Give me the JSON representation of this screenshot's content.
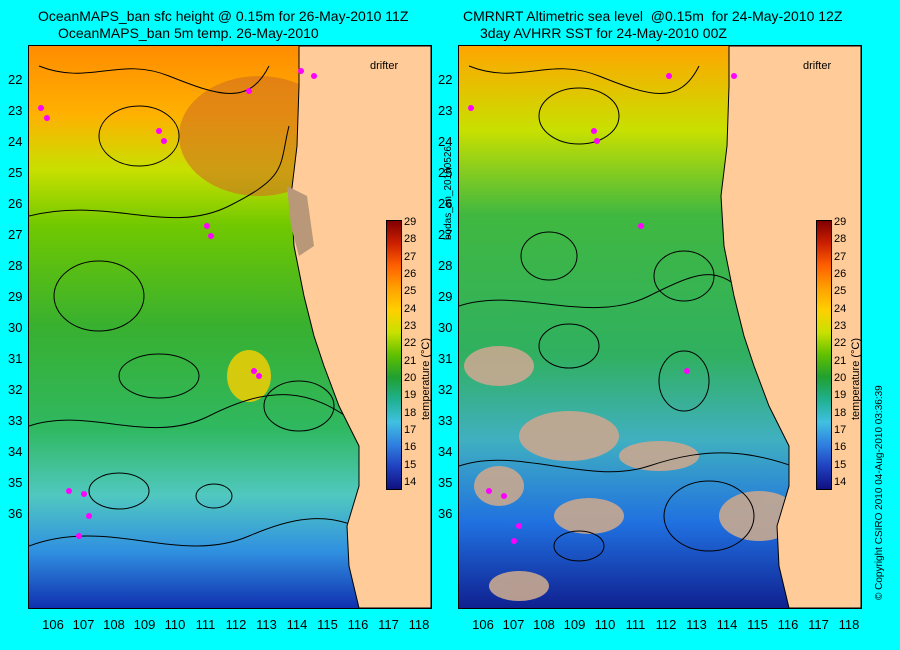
{
  "left_panel": {
    "title_line1": "OceanMAPS_ban sfc height @ 0.15m for 26-May-2010 11Z",
    "title_line2": "OceanMAPS_ban 5m temp. 26-May-2010",
    "drifter_label": "drifter"
  },
  "right_panel": {
    "title_line1": "CMRNRT Altimetric sea level  @0.15m  for 24-May-2010 12Z",
    "title_line2": "3day AVHRR SST for 24-May-2010 00Z",
    "drifter_label": "drifter"
  },
  "latitude_labels": [
    "22",
    "23",
    "24",
    "25",
    "26",
    "27",
    "28",
    "29",
    "30",
    "31",
    "32",
    "33",
    "34",
    "35",
    "36"
  ],
  "longitude_labels": [
    "106",
    "107",
    "108",
    "109",
    "110",
    "111",
    "112",
    "113",
    "114",
    "115",
    "116",
    "117",
    "118"
  ],
  "colorbar": {
    "ticks": [
      "29",
      "28",
      "27",
      "26",
      "25",
      "24",
      "23",
      "22",
      "21",
      "20",
      "19",
      "18",
      "17",
      "16",
      "15",
      "14"
    ],
    "label": "temperature (°C)"
  },
  "side_text": {
    "run_id": "bodas_an_20100526",
    "copyright": "© Copyright CSIRO 2010    04-Aug-2010 03:36:39"
  },
  "colors": {
    "background": "#00ffff",
    "land": "#ffcc99",
    "coast_brown": "#b89878",
    "drifter": "#ff00ff"
  }
}
